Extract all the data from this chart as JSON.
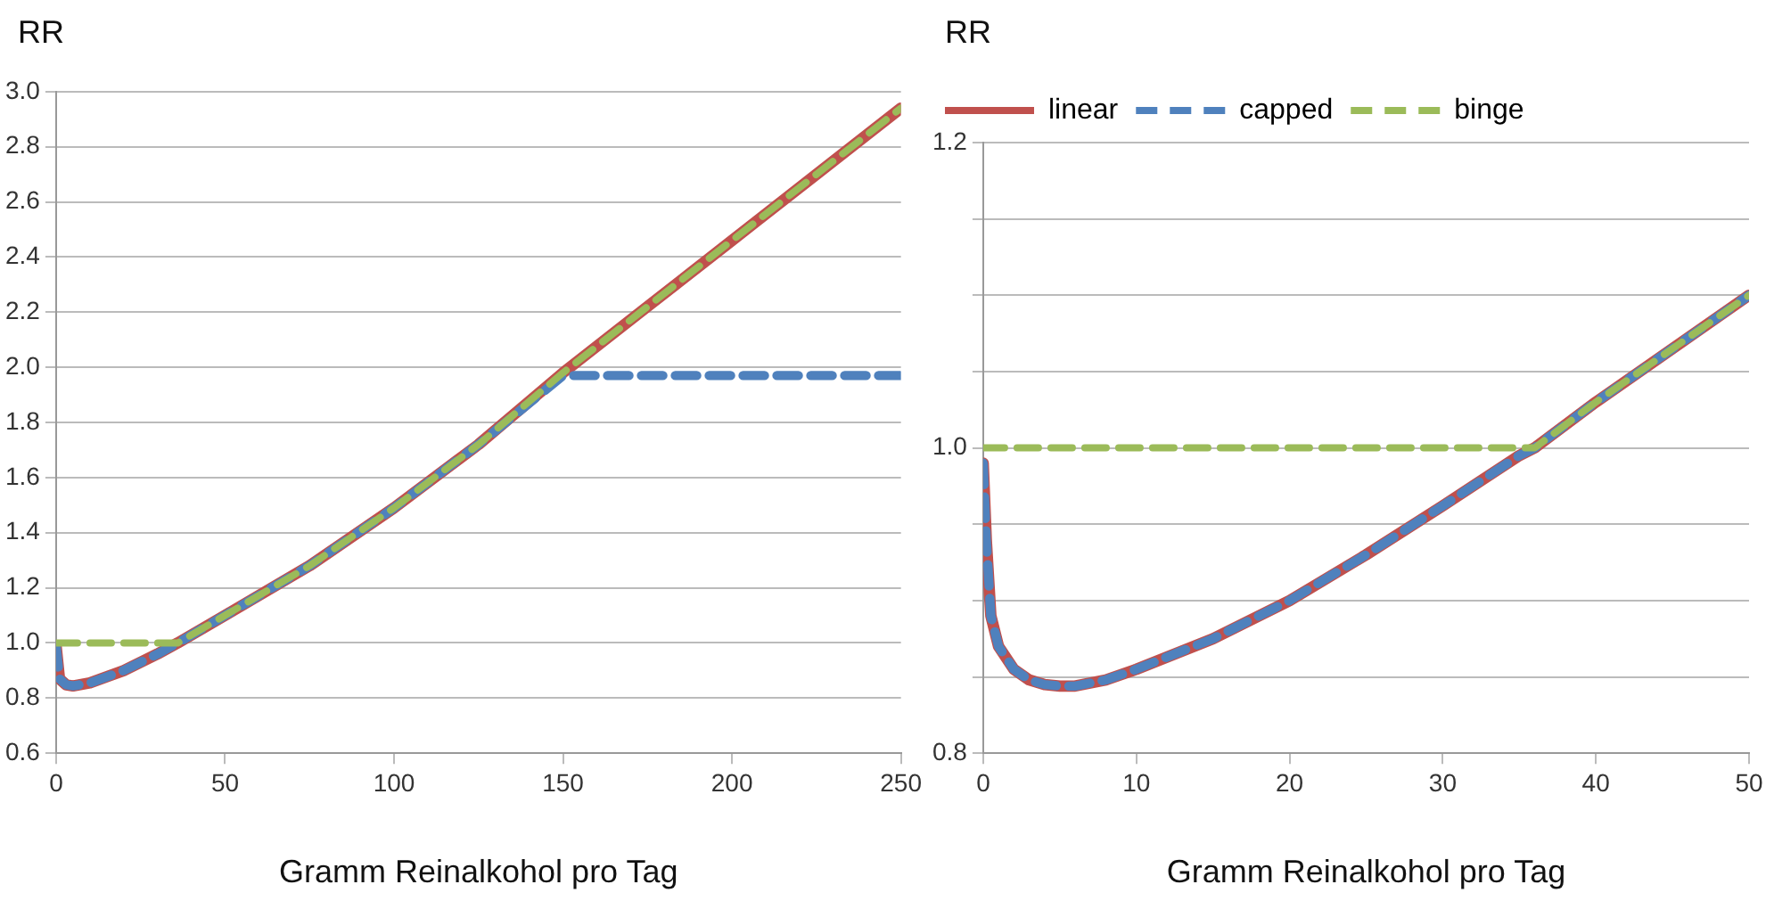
{
  "chart_data": [
    {
      "type": "line",
      "ylabel": "RR",
      "xlabel": "Gramm Reinalkohol pro Tag",
      "xlim": [
        0,
        250
      ],
      "xticks": [
        0,
        50,
        100,
        150,
        200,
        250
      ],
      "ylim": [
        0.6,
        3.0
      ],
      "yticks": [
        {
          "value": 0.6,
          "label": "0.6"
        },
        {
          "value": 0.8,
          "label": "0.8"
        },
        {
          "value": 1.0,
          "label": "1.0"
        },
        {
          "value": 1.2,
          "label": "1.2"
        },
        {
          "value": 1.4,
          "label": "1.4"
        },
        {
          "value": 1.6,
          "label": "1.6"
        },
        {
          "value": 1.8,
          "label": "1.8"
        },
        {
          "value": 2.0,
          "label": "2.0"
        },
        {
          "value": 2.2,
          "label": "2.2"
        },
        {
          "value": 2.4,
          "label": "2.4"
        },
        {
          "value": 2.6,
          "label": "2.6"
        },
        {
          "value": 2.8,
          "label": "2.8"
        },
        {
          "value": 3.0,
          "label": "3.0"
        }
      ],
      "grid": "y",
      "legend": false,
      "marker": "none",
      "series": [
        {
          "color": "#c0504d",
          "line_style": "solid",
          "x": [
            0,
            1,
            3,
            5,
            10,
            20,
            30,
            36,
            50,
            75,
            100,
            125,
            150,
            175,
            200,
            225,
            250
          ],
          "values": [
            0.99,
            0.87,
            0.848,
            0.844,
            0.855,
            0.9,
            0.96,
            1.0,
            1.1,
            1.28,
            1.49,
            1.72,
            1.98,
            2.22,
            2.46,
            2.7,
            2.94
          ]
        },
        {
          "color": "#4f81bd",
          "line_style": "dashed",
          "x": [
            0,
            1,
            3,
            5,
            10,
            20,
            30,
            36,
            50,
            75,
            100,
            125,
            150,
            175,
            200,
            225,
            250
          ],
          "values": [
            0.99,
            0.87,
            0.848,
            0.844,
            0.855,
            0.9,
            0.96,
            1.0,
            1.1,
            1.28,
            1.49,
            1.72,
            1.97,
            1.97,
            1.97,
            1.97,
            1.97
          ]
        },
        {
          "color": "#9bbb59",
          "line_style": "dashed",
          "x": [
            0,
            36,
            50,
            75,
            100,
            125,
            150,
            175,
            200,
            225,
            250
          ],
          "values": [
            1.0,
            1.0,
            1.1,
            1.28,
            1.49,
            1.72,
            1.98,
            2.22,
            2.46,
            2.7,
            2.94
          ]
        }
      ]
    },
    {
      "type": "line",
      "ylabel": "RR",
      "xlabel": "Gramm Reinalkohol pro Tag",
      "xlim": [
        0,
        50
      ],
      "xticks": [
        0,
        10,
        20,
        30,
        40,
        50
      ],
      "ylim": [
        0.8,
        1.2
      ],
      "yticks": [
        {
          "value": 0.8,
          "label": "0.8"
        },
        {
          "value": 0.85,
          "label": null
        },
        {
          "value": 0.9,
          "label": null
        },
        {
          "value": 0.95,
          "label": null
        },
        {
          "value": 1.0,
          "label": "1.0"
        },
        {
          "value": 1.05,
          "label": null
        },
        {
          "value": 1.1,
          "label": null
        },
        {
          "value": 1.15,
          "label": null
        },
        {
          "value": 1.2,
          "label": "1.2"
        }
      ],
      "grid": "y",
      "legend": "top left",
      "marker": "none",
      "series": [
        {
          "name": "linear",
          "color": "#c0504d",
          "line_style": "solid",
          "x": [
            0,
            0.2,
            0.5,
            1,
            2,
            3,
            4,
            5,
            6,
            8,
            10,
            15,
            20,
            25,
            30,
            35,
            36,
            40,
            45,
            50
          ],
          "values": [
            0.99,
            0.94,
            0.89,
            0.87,
            0.855,
            0.848,
            0.845,
            0.844,
            0.844,
            0.848,
            0.855,
            0.875,
            0.9,
            0.93,
            0.962,
            0.995,
            1.0,
            1.03,
            1.065,
            1.1
          ]
        },
        {
          "name": "capped",
          "color": "#4f81bd",
          "line_style": "dashed",
          "x": [
            0,
            0.2,
            0.5,
            1,
            2,
            3,
            4,
            5,
            6,
            8,
            10,
            15,
            20,
            25,
            30,
            35,
            36,
            40,
            45,
            50
          ],
          "values": [
            0.99,
            0.94,
            0.89,
            0.87,
            0.855,
            0.848,
            0.845,
            0.844,
            0.844,
            0.848,
            0.855,
            0.875,
            0.9,
            0.93,
            0.962,
            0.995,
            1.0,
            1.03,
            1.065,
            1.1
          ]
        },
        {
          "name": "binge",
          "color": "#9bbb59",
          "line_style": "dashed",
          "x": [
            0,
            36,
            40,
            45,
            50
          ],
          "values": [
            1.0,
            1.0,
            1.03,
            1.065,
            1.1
          ]
        }
      ]
    }
  ]
}
